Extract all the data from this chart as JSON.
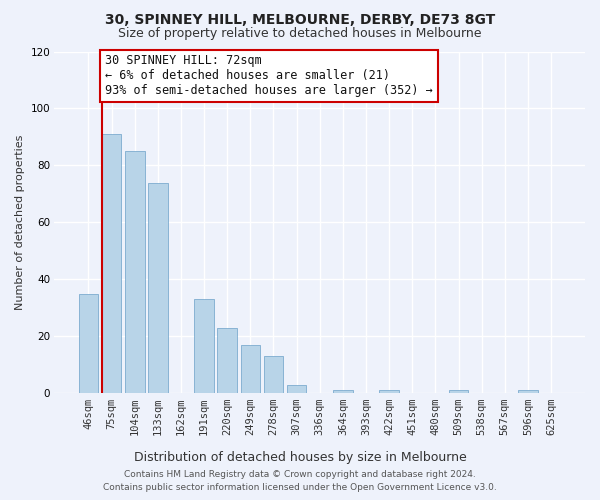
{
  "title": "30, SPINNEY HILL, MELBOURNE, DERBY, DE73 8GT",
  "subtitle": "Size of property relative to detached houses in Melbourne",
  "xlabel": "Distribution of detached houses by size in Melbourne",
  "ylabel": "Number of detached properties",
  "categories": [
    "46sqm",
    "75sqm",
    "104sqm",
    "133sqm",
    "162sqm",
    "191sqm",
    "220sqm",
    "249sqm",
    "278sqm",
    "307sqm",
    "336sqm",
    "364sqm",
    "393sqm",
    "422sqm",
    "451sqm",
    "480sqm",
    "509sqm",
    "538sqm",
    "567sqm",
    "596sqm",
    "625sqm"
  ],
  "values": [
    35,
    91,
    85,
    74,
    0,
    33,
    23,
    17,
    13,
    3,
    0,
    1,
    0,
    1,
    0,
    0,
    1,
    0,
    0,
    1,
    0
  ],
  "bar_color": "#b8d4e8",
  "highlight_line_color": "#cc0000",
  "ylim": [
    0,
    120
  ],
  "yticks": [
    0,
    20,
    40,
    60,
    80,
    100,
    120
  ],
  "annotation_line1": "30 SPINNEY HILL: 72sqm",
  "annotation_line2": "← 6% of detached houses are smaller (21)",
  "annotation_line3": "93% of semi-detached houses are larger (352) →",
  "annotation_box_color": "#cc0000",
  "annotation_box_bg": "#ffffff",
  "footer_line1": "Contains HM Land Registry data © Crown copyright and database right 2024.",
  "footer_line2": "Contains public sector information licensed under the Open Government Licence v3.0.",
  "background_color": "#eef2fb",
  "grid_color": "#ffffff",
  "title_fontsize": 10,
  "subtitle_fontsize": 9,
  "ylabel_fontsize": 8,
  "xlabel_fontsize": 9,
  "tick_fontsize": 7.5,
  "annotation_fontsize": 8.5,
  "footer_fontsize": 6.5
}
